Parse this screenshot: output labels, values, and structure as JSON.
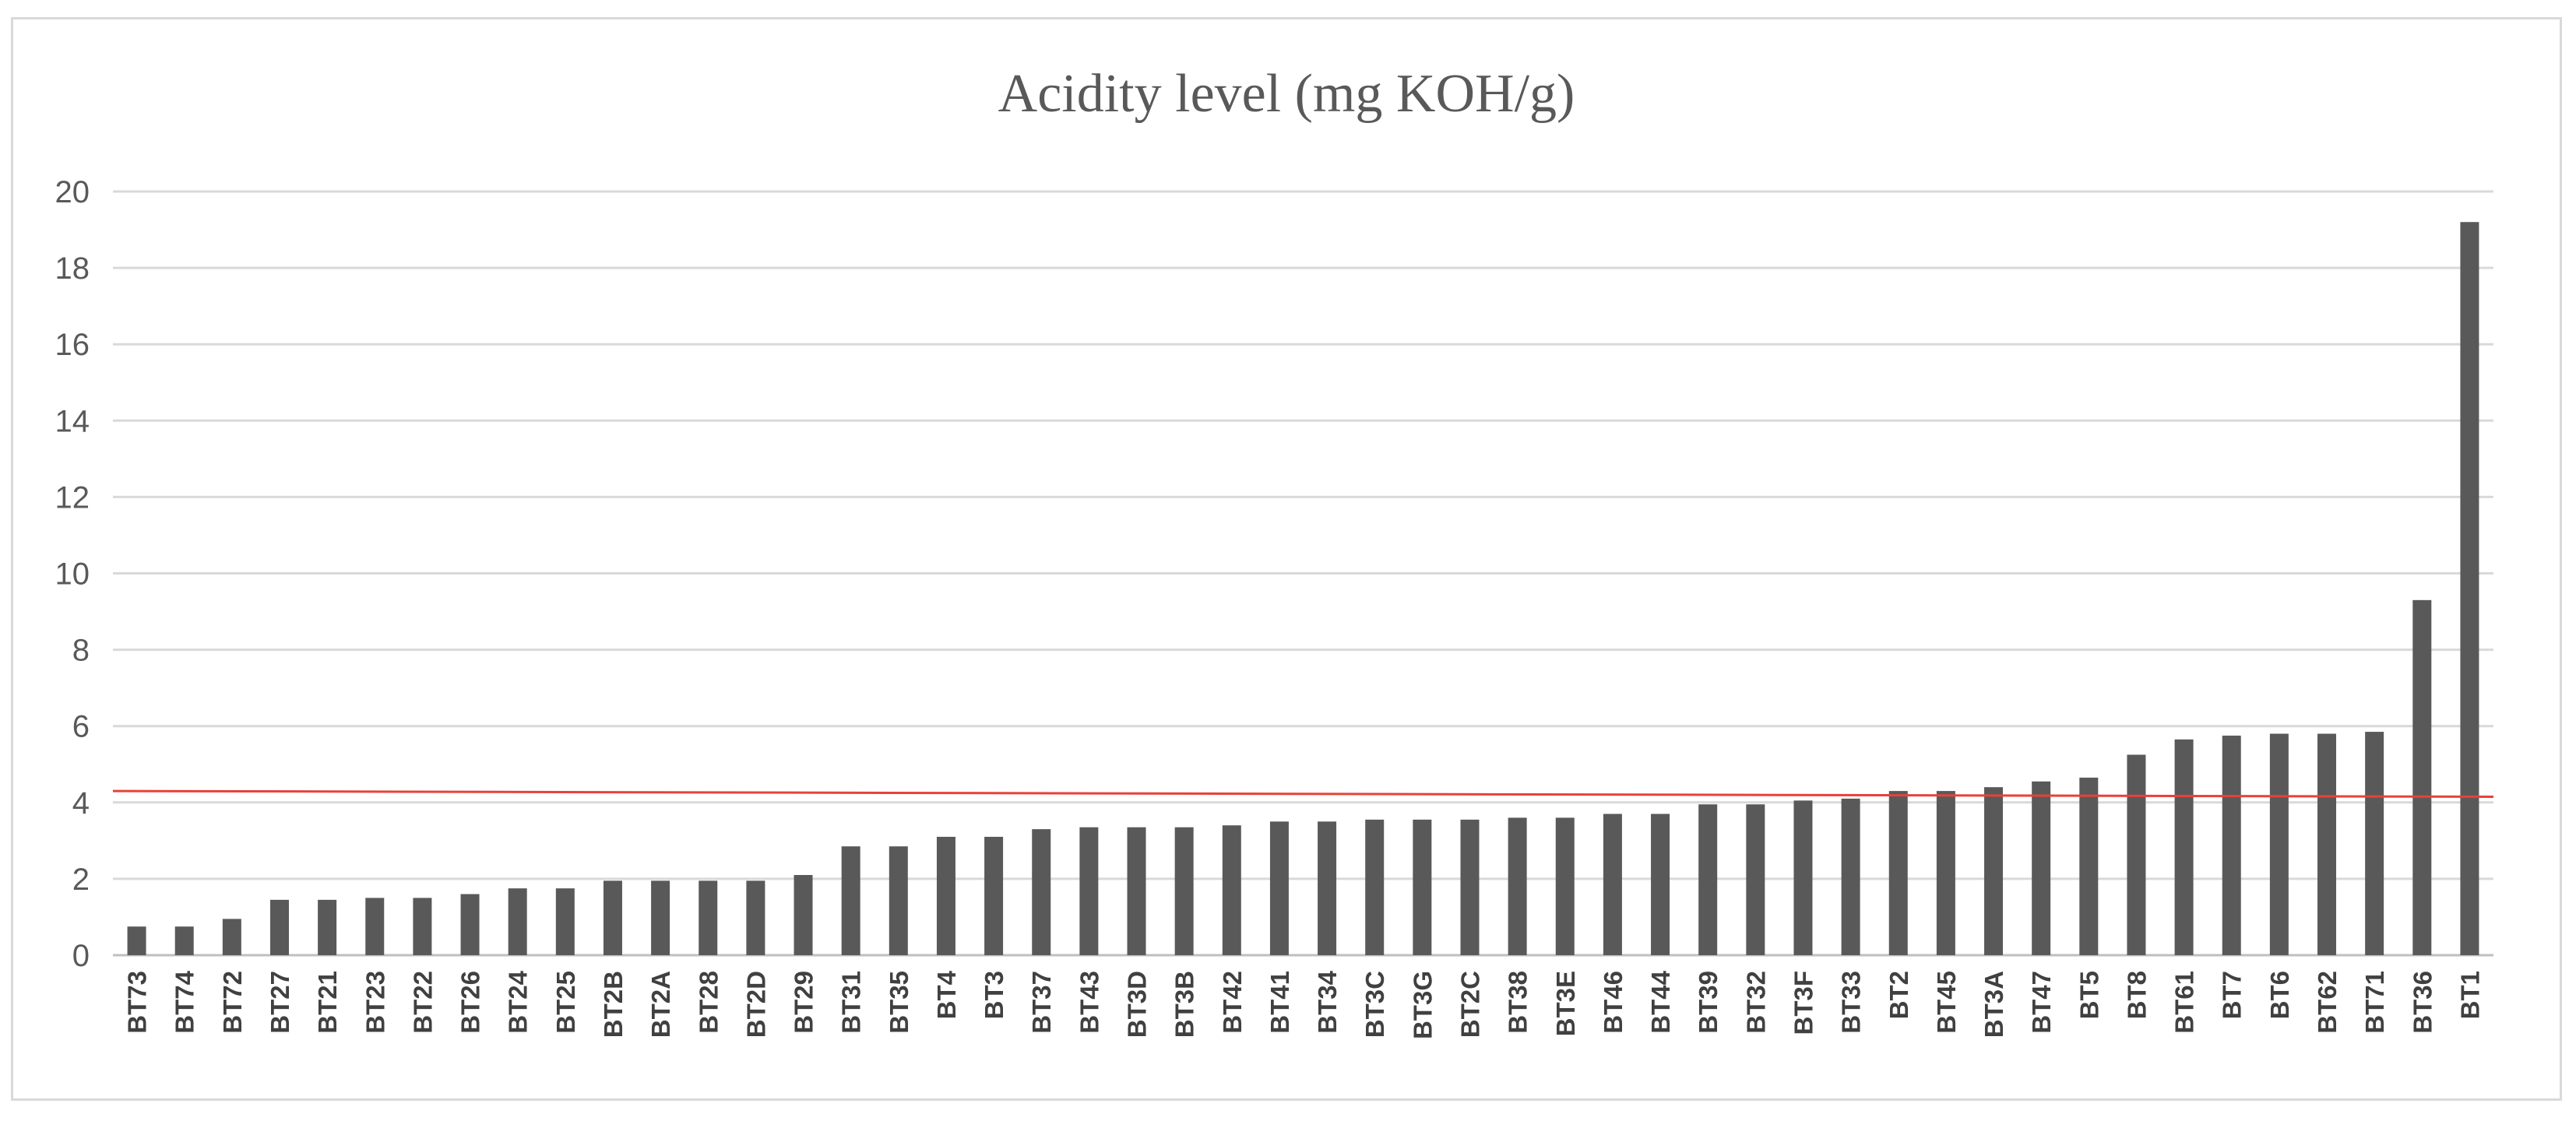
{
  "chart_data": {
    "type": "bar",
    "title": "Acidity level (mg KOH/g)",
    "xlabel": "",
    "ylabel": "",
    "ylim": [
      0,
      20
    ],
    "yticks": [
      0,
      2,
      4,
      6,
      8,
      10,
      12,
      14,
      16,
      18,
      20
    ],
    "grid": true,
    "legend": "none",
    "categories": [
      "BT73",
      "BT74",
      "BT72",
      "BT27",
      "BT21",
      "BT23",
      "BT22",
      "BT26",
      "BT24",
      "BT25",
      "BT2B",
      "BT2A",
      "BT28",
      "BT2D",
      "BT29",
      "BT31",
      "BT35",
      "BT4",
      "BT3",
      "BT37",
      "BT43",
      "BT3D",
      "BT3B",
      "BT42",
      "BT41",
      "BT34",
      "BT3C",
      "BT3G",
      "BT2C",
      "BT38",
      "BT3E",
      "BT46",
      "BT44",
      "BT39",
      "BT32",
      "BT3F",
      "BT33",
      "BT2",
      "BT45",
      "BT3A",
      "BT47",
      "BT5",
      "BT8",
      "BT61",
      "BT7",
      "BT6",
      "BT62",
      "BT71",
      "BT36",
      "BT1"
    ],
    "values": [
      0.75,
      0.75,
      0.95,
      1.45,
      1.45,
      1.5,
      1.5,
      1.6,
      1.75,
      1.75,
      1.95,
      1.95,
      1.95,
      1.95,
      2.1,
      2.85,
      2.85,
      3.1,
      3.1,
      3.3,
      3.35,
      3.35,
      3.35,
      3.4,
      3.5,
      3.5,
      3.55,
      3.55,
      3.55,
      3.6,
      3.6,
      3.7,
      3.7,
      3.95,
      3.95,
      4.05,
      4.1,
      4.3,
      4.3,
      4.4,
      4.55,
      4.65,
      5.25,
      5.65,
      5.75,
      5.8,
      5.8,
      5.85,
      9.3,
      19.2
    ],
    "reference_line": {
      "y_start": 4.3,
      "y_end": 4.15,
      "color": "#e8413a"
    },
    "bar_color": "#595959",
    "grid_color": "#d9d9d9"
  }
}
